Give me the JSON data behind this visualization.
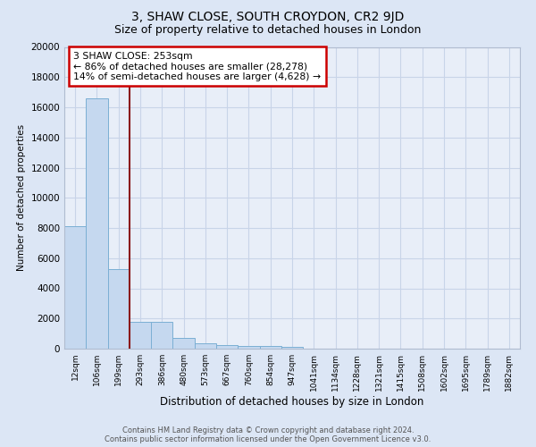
{
  "title": "3, SHAW CLOSE, SOUTH CROYDON, CR2 9JD",
  "subtitle": "Size of property relative to detached houses in London",
  "xlabel": "Distribution of detached houses by size in London",
  "ylabel": "Number of detached properties",
  "bins": [
    "12sqm",
    "106sqm",
    "199sqm",
    "293sqm",
    "386sqm",
    "480sqm",
    "573sqm",
    "667sqm",
    "760sqm",
    "854sqm",
    "947sqm",
    "1041sqm",
    "1134sqm",
    "1228sqm",
    "1321sqm",
    "1415sqm",
    "1508sqm",
    "1602sqm",
    "1695sqm",
    "1789sqm",
    "1882sqm"
  ],
  "bar_heights": [
    8100,
    16600,
    5300,
    1800,
    1800,
    700,
    350,
    250,
    200,
    175,
    130,
    0,
    0,
    0,
    0,
    0,
    0,
    0,
    0,
    0,
    0
  ],
  "bar_color": "#c5d8ef",
  "bar_edge_color": "#7bafd4",
  "property_line_x": 2.5,
  "property_line_color": "#8b1a1a",
  "annotation_text": "3 SHAW CLOSE: 253sqm\n← 86% of detached houses are smaller (28,278)\n14% of semi-detached houses are larger (4,628) →",
  "annotation_box_color": "#ffffff",
  "annotation_box_edge": "#cc0000",
  "ylim": [
    0,
    20000
  ],
  "yticks": [
    0,
    2000,
    4000,
    6000,
    8000,
    10000,
    12000,
    14000,
    16000,
    18000,
    20000
  ],
  "bg_color": "#dce6f5",
  "plot_bg_color": "#e8eef8",
  "footer_line1": "Contains HM Land Registry data © Crown copyright and database right 2024.",
  "footer_line2": "Contains public sector information licensed under the Open Government Licence v3.0.",
  "title_fontsize": 10,
  "subtitle_fontsize": 9,
  "grid_color": "#c8d4e8"
}
